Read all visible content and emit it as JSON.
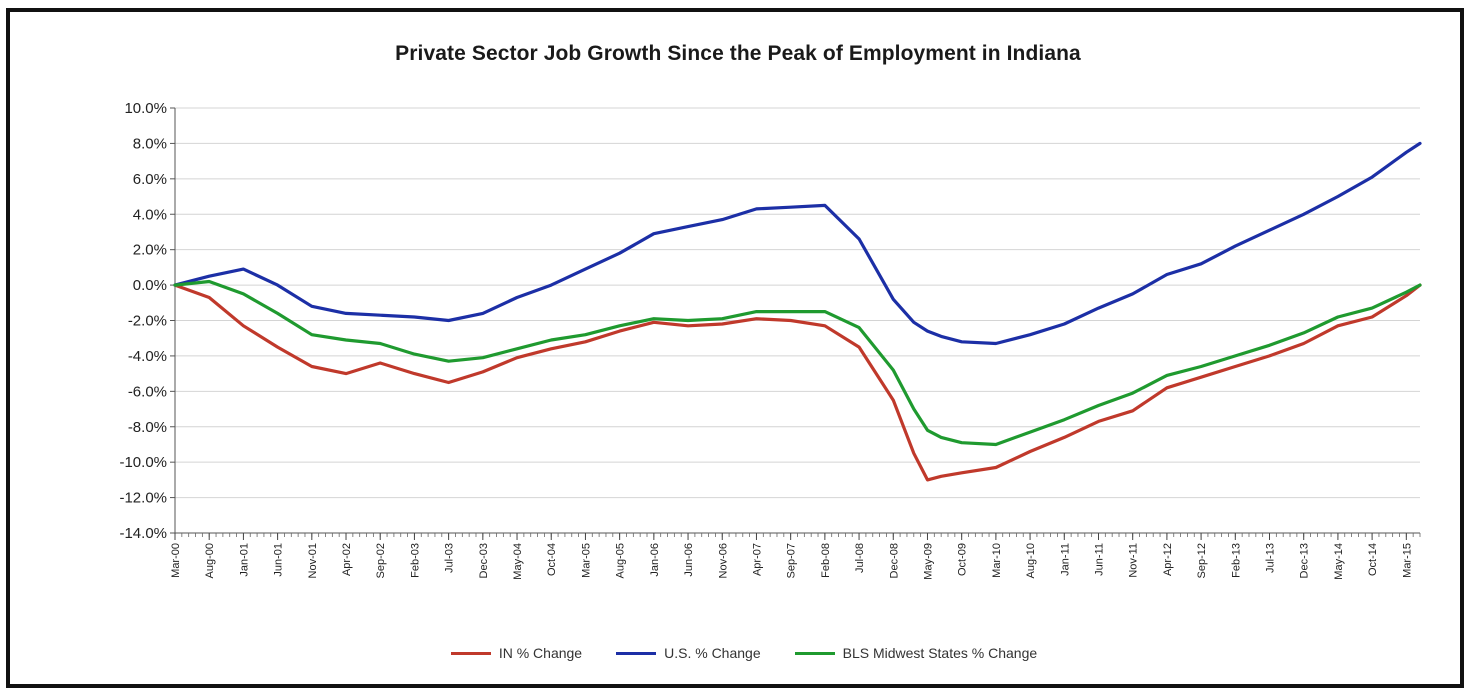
{
  "chart_data": {
    "type": "line",
    "title": "Private Sector Job Growth Since the Peak of Employment in Indiana",
    "xlabel": "",
    "ylabel": "",
    "ylim": [
      -14,
      10
    ],
    "y_ticks": [
      "10.0%",
      "8.0%",
      "6.0%",
      "4.0%",
      "2.0%",
      "0.0%",
      "-2.0%",
      "-4.0%",
      "-6.0%",
      "-8.0%",
      "-10.0%",
      "-12.0%",
      "-14.0%"
    ],
    "x_ticks": [
      "Mar-00",
      "Aug-00",
      "Jan-01",
      "Jun-01",
      "Nov-01",
      "Apr-02",
      "Sep-02",
      "Feb-03",
      "Jul-03",
      "Dec-03",
      "May-04",
      "Oct-04",
      "Mar-05",
      "Aug-05",
      "Jan-06",
      "Jun-06",
      "Nov-06",
      "Apr-07",
      "Sep-07",
      "Feb-08",
      "Jul-08",
      "Dec-08",
      "May-09",
      "Oct-09",
      "Mar-10",
      "Aug-10",
      "Jan-11",
      "Jun-11",
      "Nov-11",
      "Apr-12",
      "Sep-12",
      "Feb-13",
      "Jul-13",
      "Dec-13",
      "May-14",
      "Oct-14",
      "Mar-15"
    ],
    "x_start": "2000-03",
    "x_end": "2015-05",
    "grid": true,
    "legend_position": "bottom",
    "series": [
      {
        "name": "IN % Change",
        "color": "#c0392b",
        "x": [
          "2000-03",
          "2000-08",
          "2001-01",
          "2001-06",
          "2001-11",
          "2002-04",
          "2002-09",
          "2003-02",
          "2003-07",
          "2003-12",
          "2004-05",
          "2004-10",
          "2005-03",
          "2005-08",
          "2006-01",
          "2006-06",
          "2006-11",
          "2007-04",
          "2007-09",
          "2008-02",
          "2008-07",
          "2008-12",
          "2009-03",
          "2009-05",
          "2009-07",
          "2009-10",
          "2010-03",
          "2010-08",
          "2011-01",
          "2011-06",
          "2011-11",
          "2012-04",
          "2012-09",
          "2013-02",
          "2013-07",
          "2013-12",
          "2014-05",
          "2014-10",
          "2015-03",
          "2015-05"
        ],
        "values": [
          0.0,
          -0.7,
          -2.3,
          -3.5,
          -4.6,
          -5.0,
          -4.4,
          -5.0,
          -5.5,
          -4.9,
          -4.1,
          -3.6,
          -3.2,
          -2.6,
          -2.1,
          -2.3,
          -2.2,
          -1.9,
          -2.0,
          -2.3,
          -3.5,
          -6.5,
          -9.5,
          -11.0,
          -10.8,
          -10.6,
          -10.3,
          -9.4,
          -8.6,
          -7.7,
          -7.1,
          -5.8,
          -5.2,
          -4.6,
          -4.0,
          -3.3,
          -2.3,
          -1.8,
          -0.6,
          0.0
        ]
      },
      {
        "name": "U.S. % Change",
        "color": "#1c2fa6",
        "x": [
          "2000-03",
          "2000-08",
          "2001-01",
          "2001-06",
          "2001-11",
          "2002-04",
          "2002-09",
          "2003-02",
          "2003-07",
          "2003-12",
          "2004-05",
          "2004-10",
          "2005-03",
          "2005-08",
          "2006-01",
          "2006-06",
          "2006-11",
          "2007-04",
          "2007-09",
          "2008-02",
          "2008-07",
          "2008-12",
          "2009-03",
          "2009-05",
          "2009-07",
          "2009-10",
          "2010-03",
          "2010-08",
          "2011-01",
          "2011-06",
          "2011-11",
          "2012-04",
          "2012-09",
          "2013-02",
          "2013-07",
          "2013-12",
          "2014-05",
          "2014-10",
          "2015-03",
          "2015-05"
        ],
        "values": [
          0.0,
          0.5,
          0.9,
          0.0,
          -1.2,
          -1.6,
          -1.7,
          -1.8,
          -2.0,
          -1.6,
          -0.7,
          0.0,
          0.9,
          1.8,
          2.9,
          3.3,
          3.7,
          4.3,
          4.4,
          4.5,
          2.6,
          -0.8,
          -2.1,
          -2.6,
          -2.9,
          -3.2,
          -3.3,
          -2.8,
          -2.2,
          -1.3,
          -0.5,
          0.6,
          1.2,
          2.2,
          3.1,
          4.0,
          5.0,
          6.1,
          7.5,
          8.0
        ]
      },
      {
        "name": "BLS Midwest States % Change",
        "color": "#1f9a2f",
        "x": [
          "2000-03",
          "2000-08",
          "2001-01",
          "2001-06",
          "2001-11",
          "2002-04",
          "2002-09",
          "2003-02",
          "2003-07",
          "2003-12",
          "2004-05",
          "2004-10",
          "2005-03",
          "2005-08",
          "2006-01",
          "2006-06",
          "2006-11",
          "2007-04",
          "2007-09",
          "2008-02",
          "2008-07",
          "2008-12",
          "2009-03",
          "2009-05",
          "2009-07",
          "2009-10",
          "2010-03",
          "2010-08",
          "2011-01",
          "2011-06",
          "2011-11",
          "2012-04",
          "2012-09",
          "2013-02",
          "2013-07",
          "2013-12",
          "2014-05",
          "2014-10",
          "2015-03",
          "2015-05"
        ],
        "values": [
          0.0,
          0.2,
          -0.5,
          -1.6,
          -2.8,
          -3.1,
          -3.3,
          -3.9,
          -4.3,
          -4.1,
          -3.6,
          -3.1,
          -2.8,
          -2.3,
          -1.9,
          -2.0,
          -1.9,
          -1.5,
          -1.5,
          -1.5,
          -2.4,
          -4.8,
          -7.0,
          -8.2,
          -8.6,
          -8.9,
          -9.0,
          -8.3,
          -7.6,
          -6.8,
          -6.1,
          -5.1,
          -4.6,
          -4.0,
          -3.4,
          -2.7,
          -1.8,
          -1.3,
          -0.4,
          0.0
        ]
      }
    ]
  }
}
